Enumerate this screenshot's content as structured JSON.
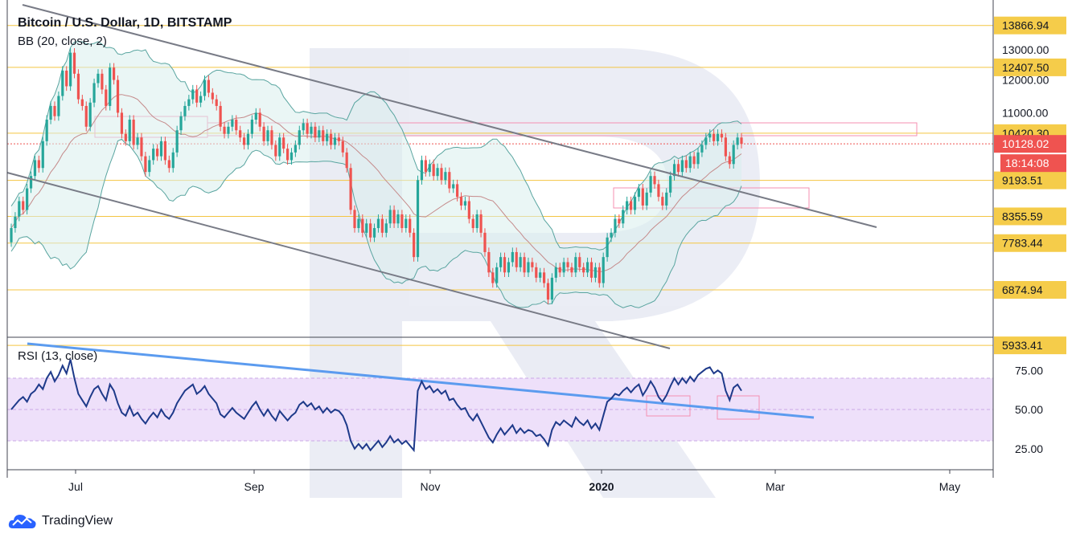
{
  "header": {
    "title": "Bitcoin / U.S. Dollar, 1D, BITSTAMP",
    "indicator": "BB (20, close, 2)",
    "rsi_label": "RSI (13, close)"
  },
  "brand": {
    "name": "TradingView"
  },
  "colors": {
    "candle_up": "#26a69a",
    "candle_down": "#ef5350",
    "bb_band": "#5aa5a0",
    "bb_fill": "#d9efec",
    "level_line": "#f4c542",
    "level_label_bg": "#f5cc4a",
    "price_label_bg": "#ef5350",
    "channel_line": "#787b86",
    "rsi_line": "#1e3a8a",
    "rsi_trend": "#5b9bef",
    "rsi_zone": "#eee0fa",
    "box_stroke": "#f48fb1"
  },
  "chart_data": {
    "type": "candlestick",
    "title": "Bitcoin / U.S. Dollar, 1D, BITSTAMP",
    "x_tick_labels": [
      "Jul",
      "Sep",
      "Nov",
      "2020",
      "Mar",
      "May"
    ],
    "price_axis_labels": [
      "13000.00",
      "12000.00",
      "11000.00",
      "9193.51",
      "8355.59",
      "7783.44",
      "6874.94",
      "5933.41"
    ],
    "level_labels": [
      "13866.94",
      "12407.50",
      "10420.30",
      "9193.51",
      "8355.59",
      "7783.44",
      "6874.94",
      "5933.41"
    ],
    "current_price": "10128.02",
    "countdown": "18:14:08",
    "rsi_axis_labels": [
      "75.00",
      "50.00",
      "25.00"
    ],
    "price_series": [
      [
        7800,
        8100
      ],
      [
        8100,
        8350
      ],
      [
        8350,
        8700
      ],
      [
        8700,
        8500
      ],
      [
        8500,
        9000
      ],
      [
        9000,
        9300
      ],
      [
        9300,
        9700
      ],
      [
        9700,
        9500
      ],
      [
        9500,
        10200
      ],
      [
        10200,
        10800
      ],
      [
        10800,
        11200
      ],
      [
        11200,
        10900
      ],
      [
        10900,
        11500
      ],
      [
        11500,
        12300
      ],
      [
        12300,
        11800
      ],
      [
        11800,
        12900
      ],
      [
        12900,
        12200
      ],
      [
        12200,
        11400
      ],
      [
        11400,
        11200
      ],
      [
        11200,
        10600
      ],
      [
        10600,
        11300
      ],
      [
        11300,
        11900
      ],
      [
        11900,
        12200
      ],
      [
        12200,
        11700
      ],
      [
        11700,
        11200
      ],
      [
        11200,
        12400
      ],
      [
        12400,
        12000
      ],
      [
        12000,
        11000
      ],
      [
        11000,
        10400
      ],
      [
        10400,
        10200
      ],
      [
        10200,
        10800
      ],
      [
        10800,
        10100
      ],
      [
        10100,
        10300
      ],
      [
        10300,
        9800
      ],
      [
        9800,
        9400
      ],
      [
        9400,
        9700
      ],
      [
        9700,
        10000
      ],
      [
        10000,
        9800
      ],
      [
        9800,
        10200
      ],
      [
        10200,
        9700
      ],
      [
        9700,
        9500
      ],
      [
        9500,
        9900
      ],
      [
        9900,
        10500
      ],
      [
        10500,
        10900
      ],
      [
        10900,
        11200
      ],
      [
        11200,
        11400
      ],
      [
        11400,
        11700
      ],
      [
        11700,
        11300
      ],
      [
        11300,
        11500
      ],
      [
        11500,
        12000
      ],
      [
        12000,
        11600
      ],
      [
        11600,
        11400
      ],
      [
        11400,
        11200
      ],
      [
        11200,
        10600
      ],
      [
        10600,
        10400
      ],
      [
        10400,
        10600
      ],
      [
        10600,
        10800
      ],
      [
        10800,
        10500
      ],
      [
        10500,
        10300
      ],
      [
        10300,
        10100
      ],
      [
        10100,
        10400
      ],
      [
        10400,
        10800
      ],
      [
        10800,
        11000
      ],
      [
        11000,
        10600
      ],
      [
        10600,
        10200
      ],
      [
        10200,
        10500
      ],
      [
        10500,
        10100
      ],
      [
        10100,
        9800
      ],
      [
        9800,
        10300
      ],
      [
        10300,
        10000
      ],
      [
        10000,
        9700
      ],
      [
        9700,
        9900
      ],
      [
        9900,
        10100
      ],
      [
        10100,
        10500
      ],
      [
        10500,
        10700
      ],
      [
        10700,
        10400
      ],
      [
        10400,
        10600
      ],
      [
        10600,
        10300
      ],
      [
        10300,
        10500
      ],
      [
        10500,
        10200
      ],
      [
        10200,
        10400
      ],
      [
        10400,
        10100
      ],
      [
        10100,
        10300
      ],
      [
        10300,
        10200
      ],
      [
        10200,
        9900
      ],
      [
        9900,
        9500
      ],
      [
        9500,
        8500
      ],
      [
        8500,
        8100
      ],
      [
        8100,
        8300
      ],
      [
        8300,
        8000
      ],
      [
        8000,
        8200
      ],
      [
        8200,
        7900
      ],
      [
        7900,
        8100
      ],
      [
        8100,
        8300
      ],
      [
        8300,
        8000
      ],
      [
        8000,
        8200
      ],
      [
        8200,
        8500
      ],
      [
        8500,
        8200
      ],
      [
        8200,
        8400
      ],
      [
        8400,
        8100
      ],
      [
        8100,
        8300
      ],
      [
        8300,
        8000
      ],
      [
        8000,
        7500
      ],
      [
        7500,
        9200
      ],
      [
        9200,
        9700
      ],
      [
        9700,
        9400
      ],
      [
        9400,
        9600
      ],
      [
        9600,
        9300
      ],
      [
        9300,
        9500
      ],
      [
        9500,
        9200
      ],
      [
        9200,
        9400
      ],
      [
        9400,
        9000
      ],
      [
        9000,
        9100
      ],
      [
        9100,
        8800
      ],
      [
        8800,
        8600
      ],
      [
        8600,
        8700
      ],
      [
        8700,
        8300
      ],
      [
        8300,
        8100
      ],
      [
        8100,
        8400
      ],
      [
        8400,
        8000
      ],
      [
        8000,
        7600
      ],
      [
        7600,
        7200
      ],
      [
        7200,
        7000
      ],
      [
        7000,
        7300
      ],
      [
        7300,
        7500
      ],
      [
        7500,
        7200
      ],
      [
        7200,
        7400
      ],
      [
        7400,
        7600
      ],
      [
        7600,
        7300
      ],
      [
        7300,
        7500
      ],
      [
        7500,
        7200
      ],
      [
        7200,
        7400
      ],
      [
        7400,
        7300
      ],
      [
        7300,
        7100
      ],
      [
        7100,
        7200
      ],
      [
        7200,
        7000
      ],
      [
        7000,
        6700
      ],
      [
        6700,
        7100
      ],
      [
        7100,
        7300
      ],
      [
        7300,
        7200
      ],
      [
        7200,
        7400
      ],
      [
        7400,
        7300
      ],
      [
        7300,
        7200
      ],
      [
        7200,
        7500
      ],
      [
        7500,
        7300
      ],
      [
        7300,
        7200
      ],
      [
        7200,
        7400
      ],
      [
        7400,
        7100
      ],
      [
        7100,
        7300
      ],
      [
        7300,
        7000
      ],
      [
        7000,
        7500
      ],
      [
        7500,
        7900
      ],
      [
        7900,
        8000
      ],
      [
        8000,
        8300
      ],
      [
        8300,
        8200
      ],
      [
        8200,
        8500
      ],
      [
        8500,
        8700
      ],
      [
        8700,
        8500
      ],
      [
        8500,
        8800
      ],
      [
        8800,
        9000
      ],
      [
        9000,
        8600
      ],
      [
        8600,
        8900
      ],
      [
        8900,
        9300
      ],
      [
        9300,
        9100
      ],
      [
        9100,
        8800
      ],
      [
        8800,
        8600
      ],
      [
        8600,
        8900
      ],
      [
        8900,
        9300
      ],
      [
        9300,
        9600
      ],
      [
        9600,
        9400
      ],
      [
        9400,
        9700
      ],
      [
        9700,
        9500
      ],
      [
        9500,
        9800
      ],
      [
        9800,
        9600
      ],
      [
        9600,
        9900
      ],
      [
        9900,
        10100
      ],
      [
        10100,
        10300
      ],
      [
        10300,
        10400
      ],
      [
        10400,
        10200
      ],
      [
        10200,
        10400
      ],
      [
        10400,
        10300
      ],
      [
        10300,
        9800
      ],
      [
        9800,
        9600
      ],
      [
        9600,
        10100
      ],
      [
        10100,
        10300
      ],
      [
        10300,
        10128
      ]
    ],
    "rsi_series": [
      50,
      53,
      56,
      58,
      55,
      60,
      62,
      66,
      63,
      70,
      74,
      68,
      72,
      78,
      73,
      82,
      70,
      60,
      56,
      52,
      58,
      63,
      65,
      60,
      56,
      66,
      62,
      54,
      48,
      46,
      52,
      46,
      48,
      44,
      41,
      45,
      48,
      45,
      50,
      46,
      44,
      48,
      54,
      58,
      62,
      64,
      66,
      60,
      62,
      65,
      60,
      57,
      54,
      47,
      45,
      48,
      51,
      48,
      46,
      44,
      48,
      52,
      55,
      50,
      46,
      50,
      46,
      43,
      49,
      46,
      43,
      46,
      48,
      53,
      55,
      52,
      54,
      50,
      52,
      48,
      51,
      48,
      50,
      49,
      46,
      40,
      30,
      25,
      28,
      25,
      28,
      24,
      27,
      30,
      26,
      29,
      33,
      29,
      31,
      28,
      30,
      27,
      24,
      62,
      68,
      63,
      65,
      61,
      63,
      60,
      62,
      56,
      57,
      53,
      50,
      51,
      46,
      43,
      47,
      42,
      37,
      32,
      29,
      34,
      38,
      34,
      37,
      40,
      35,
      38,
      35,
      37,
      36,
      33,
      34,
      31,
      27,
      37,
      42,
      40,
      43,
      41,
      39,
      45,
      42,
      40,
      43,
      38,
      41,
      37,
      46,
      55,
      57,
      60,
      59,
      62,
      64,
      61,
      64,
      66,
      59,
      63,
      68,
      64,
      58,
      55,
      59,
      65,
      70,
      66,
      70,
      67,
      71,
      68,
      72,
      74,
      76,
      77,
      73,
      75,
      73,
      62,
      56,
      64,
      66,
      62
    ]
  }
}
